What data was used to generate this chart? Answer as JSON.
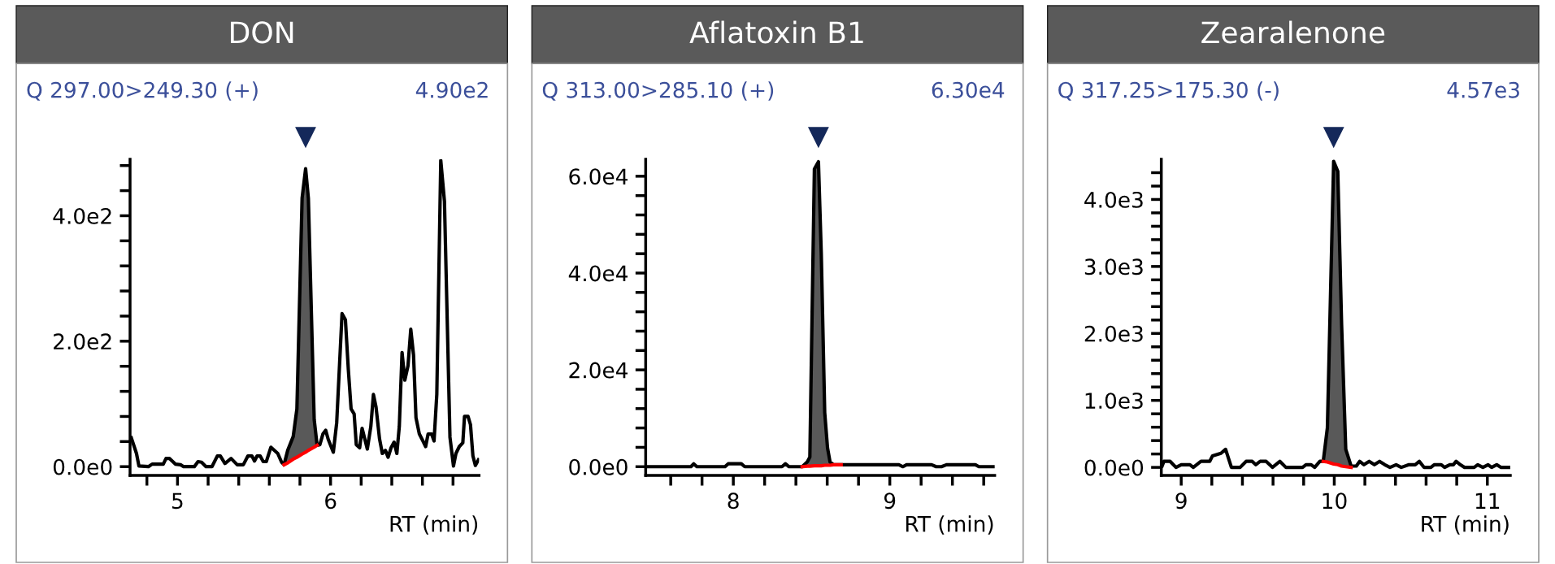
{
  "chart_data": [
    {
      "type": "line",
      "title": "DON",
      "subtitle": "Q 297.00>249.30 (+)",
      "annotations": [
        "4.90e2"
      ],
      "xlabel": "RT (min)",
      "xlim": [
        4.69,
        6.97
      ],
      "ylim": [
        -14,
        490
      ],
      "xticks": [
        {
          "value": 4.8,
          "label": null
        },
        5,
        {
          "value": 5.2,
          "label": null
        },
        {
          "value": 5.4,
          "label": null
        },
        {
          "value": 5.6,
          "label": null
        },
        {
          "value": 5.8,
          "label": null
        },
        6,
        {
          "value": 6.2,
          "label": null
        },
        {
          "value": 6.4,
          "label": null
        },
        {
          "value": 6.6,
          "label": null
        },
        {
          "value": 6.8,
          "label": null
        }
      ],
      "yticks": [
        {
          "value": 0,
          "label": "0.0e0"
        },
        {
          "value": 40,
          "label": null
        },
        {
          "value": 80,
          "label": null
        },
        {
          "value": 120,
          "label": null
        },
        {
          "value": 160,
          "label": null
        },
        {
          "value": 200,
          "label": "2.0e2"
        },
        {
          "value": 240,
          "label": null
        },
        {
          "value": 280,
          "label": null
        },
        {
          "value": 320,
          "label": null
        },
        {
          "value": 360,
          "label": null
        },
        {
          "value": 400,
          "label": "4.0e2"
        },
        {
          "value": 440,
          "label": null
        },
        {
          "value": 480,
          "label": null
        }
      ],
      "series": [
        {
          "color": "#000000",
          "x": [
            4.698,
            4.732,
            4.748,
            4.81,
            4.834,
            4.907,
            4.925,
            4.948,
            4.986,
            5.02,
            5.04,
            5.11,
            5.134,
            5.157,
            5.186,
            5.225,
            5.26,
            5.28,
            5.31,
            5.35,
            5.39,
            5.43,
            5.46,
            5.486,
            5.503,
            5.52,
            5.54,
            5.56,
            5.58,
            5.61,
            5.655,
            5.68,
            5.696,
            5.72,
            5.756,
            5.78,
            5.814,
            5.837,
            5.855,
            5.893,
            5.912,
            5.93,
            5.95,
            5.968,
            5.984,
            6.018,
            6.04,
            6.075,
            6.097,
            6.116,
            6.134,
            6.154,
            6.168,
            6.19,
            6.206,
            6.24,
            6.263,
            6.28,
            6.297,
            6.32,
            6.338,
            6.358,
            6.376,
            6.395,
            6.415,
            6.433,
            6.449,
            6.467,
            6.485,
            6.506,
            6.524,
            6.542,
            6.558,
            6.58,
            6.603,
            6.621,
            6.637,
            6.66,
            6.676,
            6.694,
            6.72,
            6.744,
            6.78,
            6.803,
            6.819,
            6.841,
            6.864,
            6.875,
            6.898,
            6.914,
            6.93,
            6.946,
            6.966
          ],
          "values": [
            46,
            21,
            1,
            0,
            4,
            4,
            13,
            13,
            4,
            3,
            0,
            0,
            8,
            7,
            0,
            0,
            17,
            17,
            5,
            13,
            3,
            3,
            17,
            17,
            9,
            17,
            17,
            8,
            8,
            31,
            21,
            7,
            3,
            26,
            48,
            92,
            428,
            475,
            428,
            75,
            34,
            35,
            52,
            58,
            44,
            23,
            70,
            244,
            234,
            155,
            92,
            84,
            35,
            30,
            61,
            28,
            64,
            115,
            95,
            44,
            21,
            26,
            15,
            30,
            39,
            21,
            64,
            182,
            138,
            161,
            219,
            178,
            78,
            52,
            41,
            32,
            52,
            52,
            41,
            115,
            488,
            423,
            47,
            1,
            21,
            32,
            38,
            80,
            80,
            67,
            17,
            2,
            11
          ]
        },
        {
          "type": "area",
          "color": "#595959",
          "x": [
            5.696,
            5.72,
            5.756,
            5.78,
            5.814,
            5.837,
            5.855,
            5.893,
            5.912
          ],
          "values": [
            3,
            26,
            48,
            92,
            428,
            475,
            428,
            75,
            34
          ]
        },
        {
          "type": "line",
          "color": "#ff0000",
          "x": [
            5.696,
            5.72,
            5.756,
            5.78,
            5.814,
            5.837,
            5.855,
            5.893,
            5.912
          ],
          "values": [
            3,
            6,
            12,
            15,
            20,
            23,
            26,
            31,
            34
          ]
        }
      ]
    },
    {
      "type": "line",
      "title": "Aflatoxin B1",
      "subtitle": "Q 313.00>285.10 (+)",
      "annotations": [
        "6.30e4"
      ],
      "xlabel": "RT (min)",
      "xlim": [
        7.44,
        9.67
      ],
      "ylim": [
        -1800,
        63500
      ],
      "xticks": [
        {
          "value": 7.6,
          "label": null
        },
        {
          "value": 7.8,
          "label": null
        },
        8,
        {
          "value": 8.2,
          "label": null
        },
        {
          "value": 8.4,
          "label": null
        },
        {
          "value": 8.6,
          "label": null
        },
        {
          "value": 8.8,
          "label": null
        },
        9,
        {
          "value": 9.2,
          "label": null
        },
        {
          "value": 9.4,
          "label": null
        },
        {
          "value": 9.6,
          "label": null
        }
      ],
      "yticks": [
        {
          "value": 0,
          "label": "0.0e0"
        },
        {
          "value": 4000,
          "label": null
        },
        {
          "value": 8000,
          "label": null
        },
        {
          "value": 12000,
          "label": null
        },
        {
          "value": 16000,
          "label": null
        },
        {
          "value": 20000,
          "label": "2.0e4"
        },
        {
          "value": 24000,
          "label": null
        },
        {
          "value": 28000,
          "label": null
        },
        {
          "value": 32000,
          "label": null
        },
        {
          "value": 36000,
          "label": null
        },
        {
          "value": 40000,
          "label": "4.0e4"
        },
        {
          "value": 44000,
          "label": null
        },
        {
          "value": 48000,
          "label": null
        },
        {
          "value": 52000,
          "label": null
        },
        {
          "value": 56000,
          "label": null
        },
        {
          "value": 60000,
          "label": "6.0e4"
        }
      ],
      "series": [
        {
          "color": "#000000",
          "x": [
            7.44,
            7.729,
            7.747,
            7.767,
            7.947,
            7.967,
            8.051,
            8.073,
            8.311,
            8.333,
            8.356,
            8.44,
            8.473,
            8.489,
            8.518,
            8.544,
            8.562,
            8.584,
            8.602,
            8.618,
            8.64,
            8.689,
            9.058,
            9.084,
            9.107,
            9.267,
            9.296,
            9.33,
            9.362,
            9.547,
            9.569,
            9.669
          ],
          "values": [
            0,
            0,
            600,
            0,
            0,
            600,
            600,
            0,
            0,
            600,
            0,
            0,
            1000,
            2000,
            61500,
            63000,
            44100,
            11200,
            3900,
            1000,
            400,
            400,
            400,
            0,
            400,
            400,
            0,
            0,
            400,
            400,
            0,
            0
          ]
        },
        {
          "type": "area",
          "color": "#595959",
          "x": [
            8.44,
            8.473,
            8.489,
            8.518,
            8.544,
            8.562,
            8.584,
            8.602,
            8.618,
            8.64,
            8.689
          ],
          "values": [
            0,
            1000,
            2000,
            61500,
            63000,
            44100,
            11200,
            3900,
            1000,
            400,
            400
          ]
        },
        {
          "type": "line",
          "color": "#ff0000",
          "x": [
            8.44,
            8.473,
            8.489,
            8.518,
            8.544,
            8.562,
            8.584,
            8.602,
            8.618,
            8.64,
            8.689
          ],
          "values": [
            0,
            100,
            100,
            200,
            200,
            200,
            300,
            300,
            300,
            400,
            400
          ]
        }
      ]
    },
    {
      "type": "line",
      "title": "Zearalenone",
      "subtitle": "Q 317.25>175.30 (-)",
      "annotations": [
        "4.57e3"
      ],
      "xlabel": "RT (min)",
      "xlim": [
        8.87,
        11.15
      ],
      "ylim": [
        -120,
        4600
      ],
      "xticks": [
        9,
        {
          "value": 9.2,
          "label": null
        },
        {
          "value": 9.4,
          "label": null
        },
        {
          "value": 9.6,
          "label": null
        },
        {
          "value": 9.8,
          "label": null
        },
        10,
        {
          "value": 10.2,
          "label": null
        },
        {
          "value": 10.4,
          "label": null
        },
        {
          "value": 10.6,
          "label": null
        },
        {
          "value": 10.8,
          "label": null
        },
        11
      ],
      "yticks": [
        {
          "value": 0,
          "label": "0.0e0"
        },
        {
          "value": 200,
          "label": null
        },
        {
          "value": 400,
          "label": null
        },
        {
          "value": 600,
          "label": null
        },
        {
          "value": 800,
          "label": null
        },
        {
          "value": 1000,
          "label": "1.0e3"
        },
        {
          "value": 1200,
          "label": null
        },
        {
          "value": 1400,
          "label": null
        },
        {
          "value": 1600,
          "label": null
        },
        {
          "value": 1800,
          "label": null
        },
        {
          "value": 2000,
          "label": "2.0e3"
        },
        {
          "value": 2200,
          "label": null
        },
        {
          "value": 2400,
          "label": null
        },
        {
          "value": 2600,
          "label": null
        },
        {
          "value": 2800,
          "label": null
        },
        {
          "value": 3000,
          "label": "3.0e3"
        },
        {
          "value": 3200,
          "label": null
        },
        {
          "value": 3400,
          "label": null
        },
        {
          "value": 3600,
          "label": null
        },
        {
          "value": 3800,
          "label": null
        },
        {
          "value": 4000,
          "label": "4.0e3"
        },
        {
          "value": 4200,
          "label": null
        },
        {
          "value": 4400,
          "label": null
        }
      ],
      "series": [
        {
          "color": "#000000",
          "x": [
            8.875,
            8.887,
            8.928,
            8.966,
            9.0,
            9.057,
            9.079,
            9.129,
            9.186,
            9.204,
            9.26,
            9.29,
            9.328,
            9.385,
            9.424,
            9.464,
            9.487,
            9.516,
            9.555,
            9.596,
            9.645,
            9.684,
            9.793,
            9.815,
            9.849,
            9.872,
            9.906,
            9.928,
            9.955,
            9.996,
            10.023,
            10.048,
            10.075,
            10.11,
            10.144,
            10.166,
            10.194,
            10.228,
            10.262,
            10.296,
            10.33,
            10.364,
            10.404,
            10.438,
            10.488,
            10.529,
            10.556,
            10.586,
            10.631,
            10.653,
            10.699,
            10.721,
            10.755,
            10.778,
            10.796,
            10.823,
            10.851,
            10.914,
            10.937,
            10.971,
            11.005,
            11.028,
            11.061,
            11.088,
            11.147
          ],
          "values": [
            20,
            90,
            90,
            0,
            40,
            40,
            0,
            90,
            90,
            170,
            210,
            270,
            0,
            0,
            90,
            90,
            40,
            90,
            90,
            0,
            90,
            0,
            0,
            40,
            40,
            0,
            90,
            90,
            590,
            4570,
            4420,
            2130,
            270,
            20,
            20,
            90,
            40,
            90,
            40,
            90,
            40,
            0,
            40,
            0,
            40,
            40,
            90,
            0,
            0,
            40,
            40,
            0,
            40,
            40,
            90,
            40,
            0,
            0,
            40,
            0,
            40,
            0,
            40,
            0,
            0
          ]
        },
        {
          "type": "area",
          "color": "#595959",
          "x": [
            9.928,
            9.955,
            9.996,
            10.023,
            10.048,
            10.075,
            10.11
          ],
          "values": [
            90,
            590,
            4570,
            4420,
            2130,
            270,
            20
          ]
        },
        {
          "type": "line",
          "color": "#ff0000",
          "x": [
            9.928,
            9.955,
            9.996,
            10.023,
            10.048,
            10.075,
            10.11
          ],
          "values": [
            90,
            80,
            50,
            40,
            20,
            10,
            0
          ]
        }
      ]
    }
  ]
}
